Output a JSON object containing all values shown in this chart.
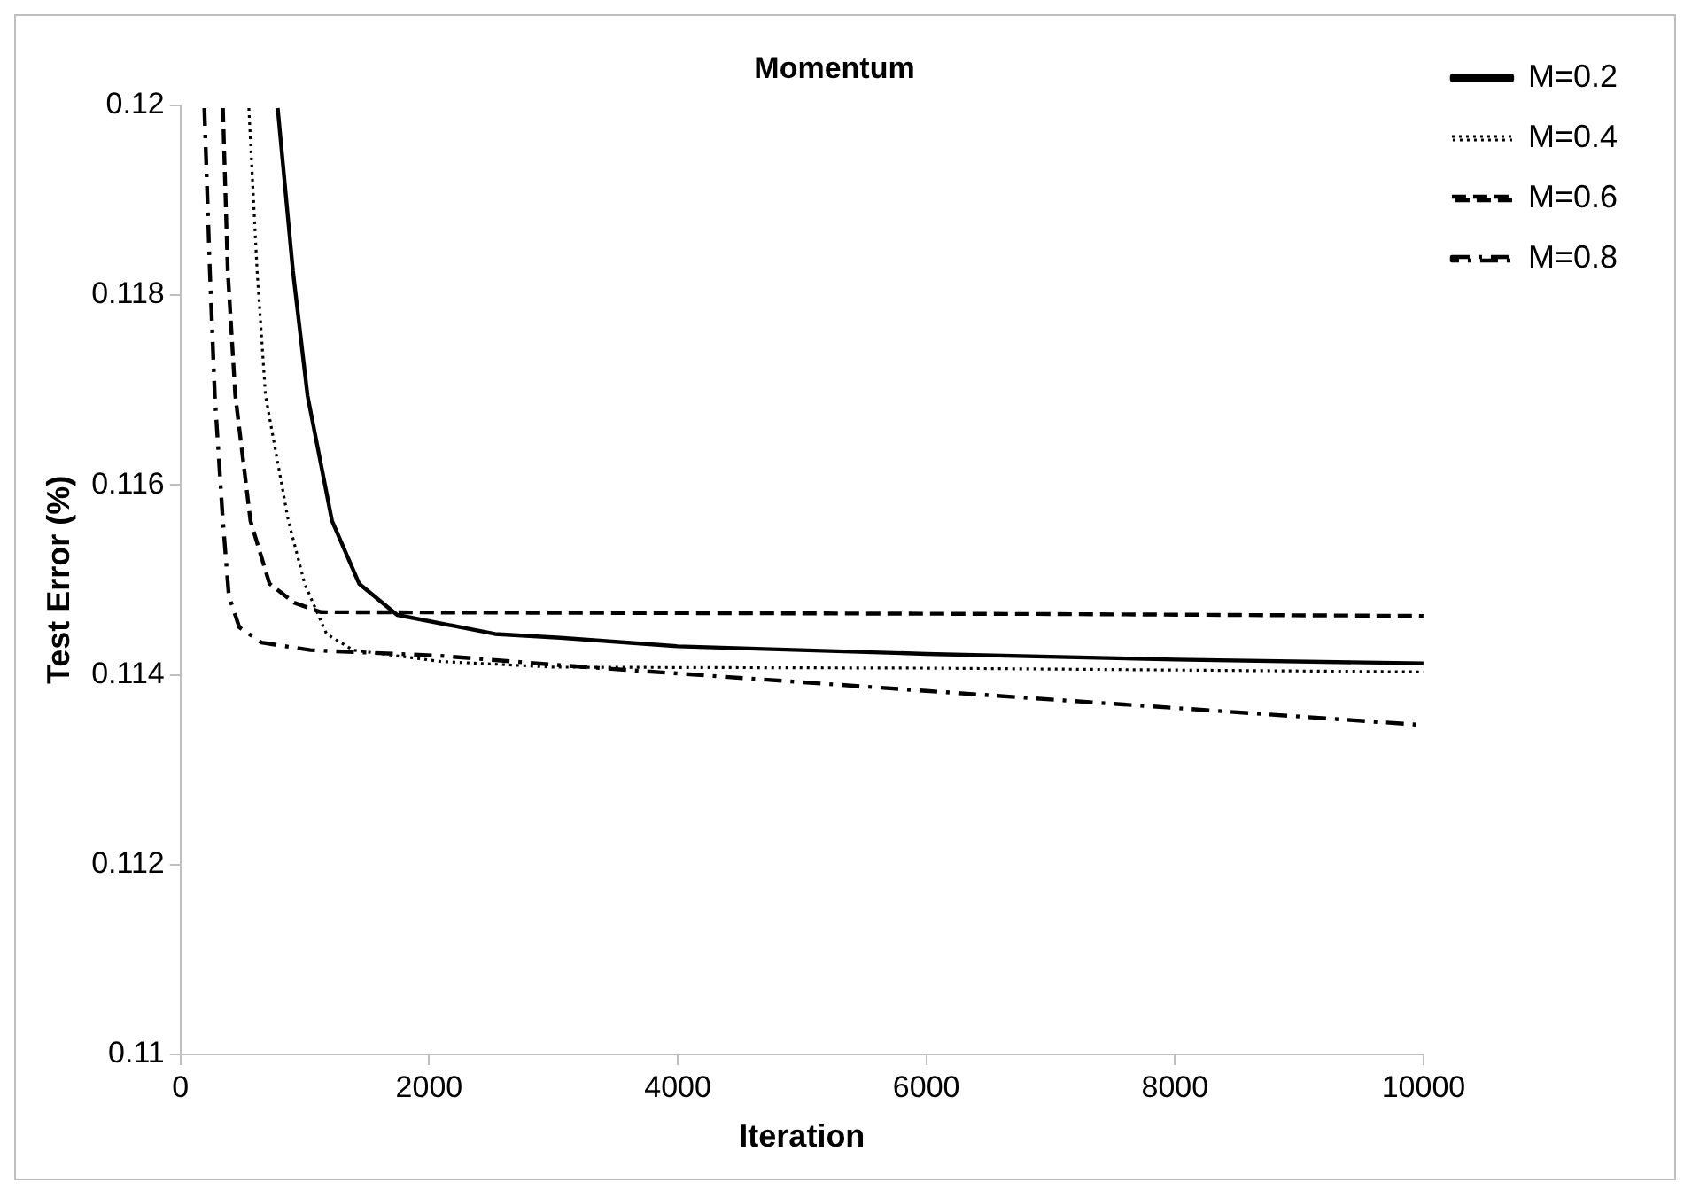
{
  "chart_data": {
    "type": "line",
    "title": "Momentum",
    "xlabel": "Iteration",
    "ylabel": "Test Error (%)",
    "xlim": [
      0,
      10000
    ],
    "xticks": [
      0,
      2000,
      4000,
      6000,
      8000,
      10000
    ],
    "ylim": [
      0.11,
      0.12
    ],
    "yticks": [
      0.11,
      0.112,
      0.114,
      0.116,
      0.118,
      0.12
    ],
    "grid": false,
    "legend": "top right",
    "marker": "none",
    "series": [
      {
        "name": "M=0.2",
        "color": "#000000",
        "line_style": "solid",
        "x": [
          782,
          904,
          1022,
          1219,
          1437,
          1743,
          2530,
          3054,
          4000,
          6000,
          8000,
          10000
        ],
        "values": [
          0.11997,
          0.11826,
          0.11694,
          0.11562,
          0.11496,
          0.11463,
          0.11443,
          0.11439,
          0.1143,
          0.11422,
          0.11416,
          0.11412
        ]
      },
      {
        "name": "M=0.4",
        "color": "#000000",
        "line_style": "dotted",
        "x": [
          550,
          616,
          684,
          868,
          999,
          1175,
          1390,
          2093,
          3000,
          6000,
          10000
        ],
        "values": [
          0.11997,
          0.11826,
          0.11694,
          0.11562,
          0.11496,
          0.11443,
          0.11426,
          0.11414,
          0.11408,
          0.11407,
          0.11403
        ]
      },
      {
        "name": "M=0.6",
        "color": "#000000",
        "line_style": "dashed",
        "x": [
          341,
          380,
          441,
          563,
          716,
          913,
          1130,
          4000,
          7000,
          10000
        ],
        "values": [
          0.11997,
          0.11826,
          0.11694,
          0.11562,
          0.11496,
          0.11476,
          0.11466,
          0.11465,
          0.11464,
          0.11462
        ]
      },
      {
        "name": "M=0.8",
        "color": "#000000",
        "line_style": "dashdot",
        "x": [
          192,
          236,
          276,
          341,
          389,
          473,
          651,
          1045,
          2093,
          3054,
          6000,
          8000,
          10000
        ],
        "values": [
          0.11997,
          0.11826,
          0.11694,
          0.11562,
          0.11483,
          0.1145,
          0.11434,
          0.11426,
          0.1142,
          0.1141,
          0.11383,
          0.11365,
          0.11347
        ]
      }
    ]
  }
}
